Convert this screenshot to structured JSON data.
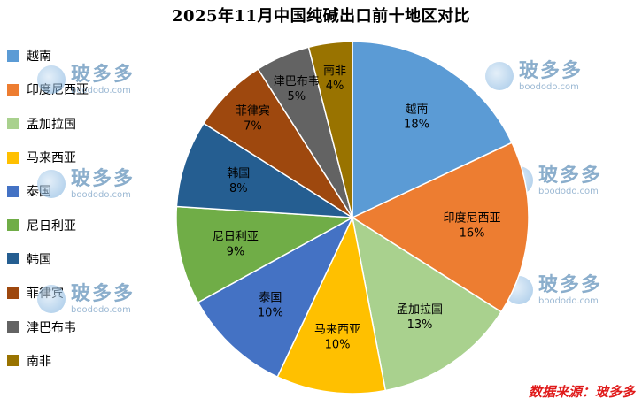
{
  "chart_data": {
    "type": "pie",
    "title": "2025年11月中国纯碱出口前十地区对比",
    "slices": [
      {
        "label": "越南",
        "percent": 18,
        "percent_label": "18%",
        "color": "#5B9BD5"
      },
      {
        "label": "印度尼西亚",
        "percent": 16,
        "percent_label": "16%",
        "color": "#ED7D31"
      },
      {
        "label": "孟加拉国",
        "percent": 13,
        "percent_label": "13%",
        "color": "#A9D18E"
      },
      {
        "label": "马来西亚",
        "percent": 10,
        "percent_label": "10%",
        "color": "#FFC000"
      },
      {
        "label": "泰国",
        "percent": 10,
        "percent_label": "10%",
        "color": "#4472C4"
      },
      {
        "label": "尼日利亚",
        "percent": 9,
        "percent_label": "9%",
        "color": "#70AD47"
      },
      {
        "label": "韩国",
        "percent": 8,
        "percent_label": "8%",
        "color": "#255E91"
      },
      {
        "label": "菲律宾",
        "percent": 7,
        "percent_label": "7%",
        "color": "#9E480E"
      },
      {
        "label": "津巴布韦",
        "percent": 5,
        "percent_label": "5%",
        "color": "#636363"
      },
      {
        "label": "南非",
        "percent": 4,
        "percent_label": "4%",
        "color": "#997300"
      }
    ],
    "legend_position": "left"
  },
  "source": "数据来源：玻多多",
  "watermark": {
    "brand": "玻多多",
    "url": "boododo.com"
  }
}
